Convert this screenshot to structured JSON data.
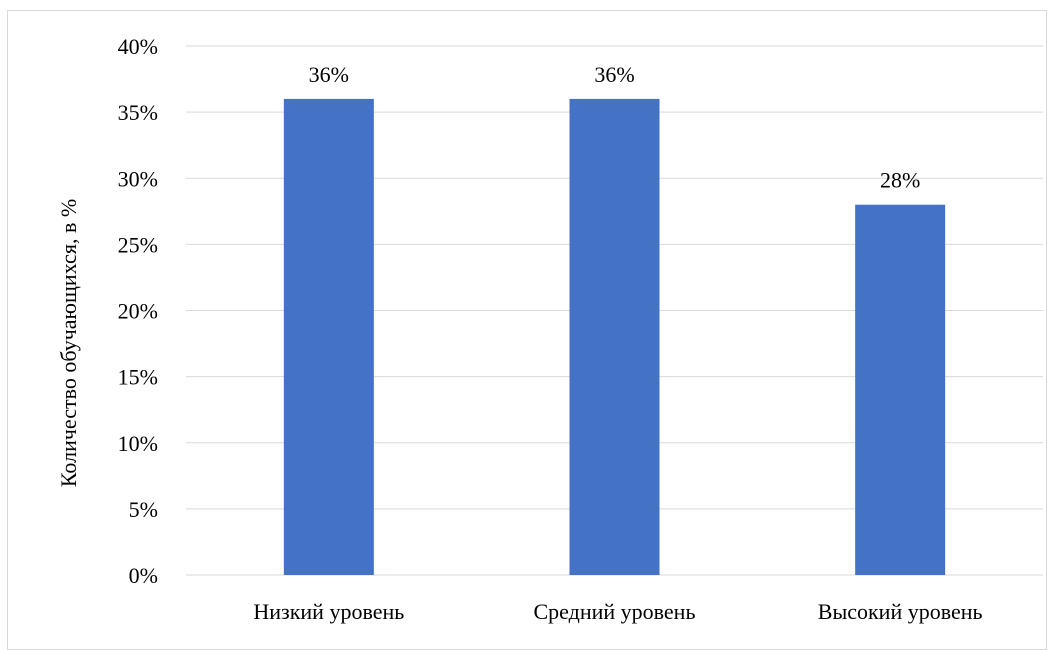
{
  "chart_data": {
    "type": "bar",
    "title": "",
    "xlabel": "",
    "ylabel": "Количество обучающихся, в %",
    "categories": [
      "Низкий уровень",
      "Средний уровень",
      "Высокий уровень"
    ],
    "values": [
      36,
      36,
      28
    ],
    "data_labels": [
      "36%",
      "36%",
      "28%"
    ],
    "ylim": [
      0,
      40
    ],
    "yticks": [
      0,
      5,
      10,
      15,
      20,
      25,
      30,
      35,
      40
    ],
    "ytick_labels": [
      "0%",
      "5%",
      "10%",
      "15%",
      "20%",
      "25%",
      "30%",
      "35%",
      "40%"
    ],
    "grid": true,
    "legend": "none",
    "bar_color": "#4472c4",
    "grid_color": "#d9d9d9"
  }
}
